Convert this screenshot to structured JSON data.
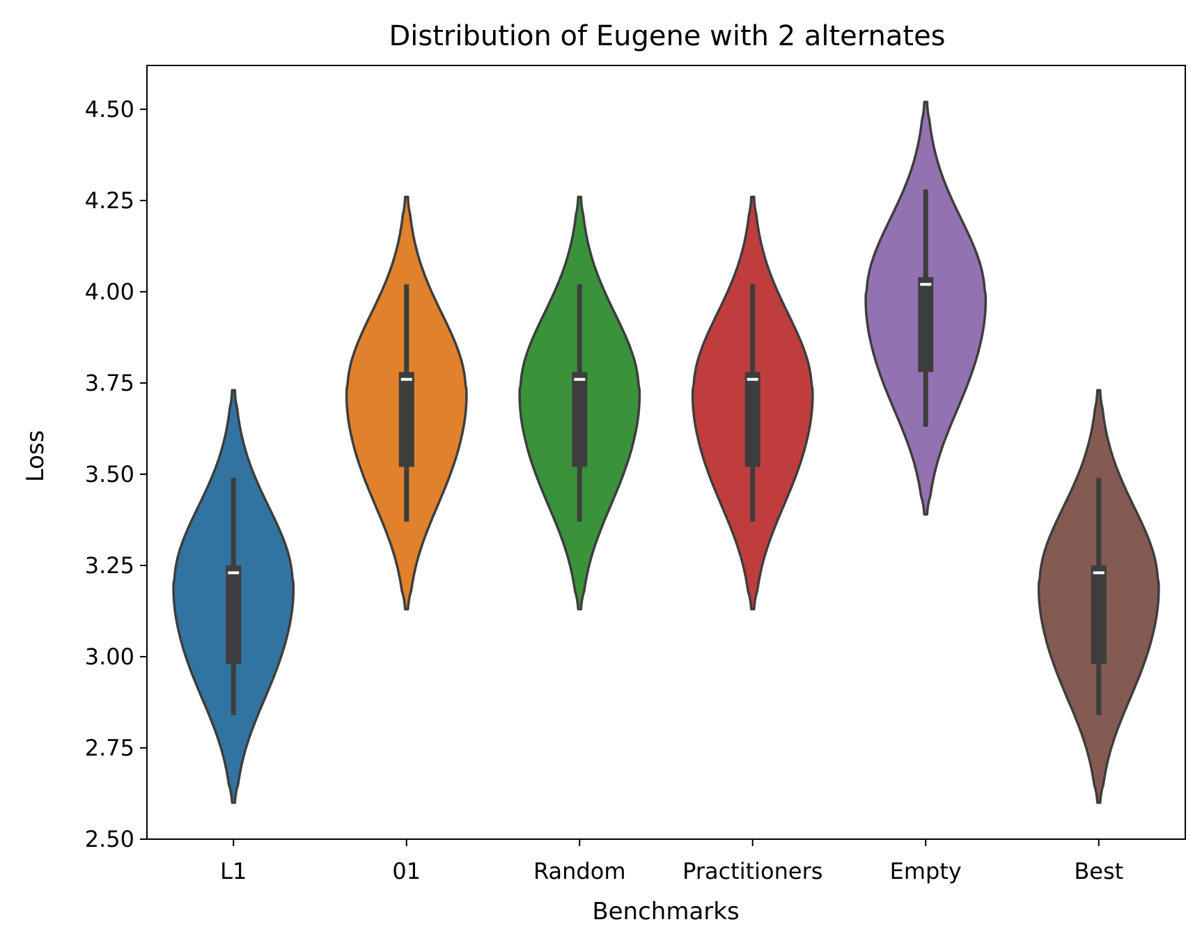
{
  "chart_data": {
    "type": "violin",
    "title": "Distribution of Eugene with 2 alternates",
    "xlabel": "Benchmarks",
    "ylabel": "Loss",
    "ylim": [
      2.5,
      4.62
    ],
    "yticks": [
      "2.50",
      "2.75",
      "3.00",
      "3.25",
      "3.50",
      "3.75",
      "4.00",
      "4.25",
      "4.50"
    ],
    "categories": [
      "L1",
      "01",
      "Random",
      "Practitioners",
      "Empty",
      "Best"
    ],
    "grid": false,
    "legend": "none",
    "series": [
      {
        "category": "L1",
        "color": "#3274a1",
        "min": 2.6,
        "max": 3.73,
        "mode": 3.21,
        "whisker_low": 2.84,
        "q1": 2.98,
        "median": 3.23,
        "q3": 3.25,
        "whisker_high": 3.49
      },
      {
        "category": "01",
        "color": "#e1812c",
        "min": 3.13,
        "max": 4.26,
        "mode": 3.74,
        "whisker_low": 3.37,
        "q1": 3.52,
        "median": 3.76,
        "q3": 3.78,
        "whisker_high": 4.02
      },
      {
        "category": "Random",
        "color": "#3a923a",
        "min": 3.13,
        "max": 4.26,
        "mode": 3.74,
        "whisker_low": 3.37,
        "q1": 3.52,
        "median": 3.76,
        "q3": 3.78,
        "whisker_high": 4.02
      },
      {
        "category": "Practitioners",
        "color": "#c03d3e",
        "min": 3.13,
        "max": 4.26,
        "mode": 3.74,
        "whisker_low": 3.37,
        "q1": 3.52,
        "median": 3.76,
        "q3": 3.78,
        "whisker_high": 4.02
      },
      {
        "category": "Empty",
        "color": "#9372b2",
        "min": 3.39,
        "max": 4.52,
        "mode": 4.0,
        "whisker_low": 3.63,
        "q1": 3.78,
        "median": 4.02,
        "q3": 4.04,
        "whisker_high": 4.28
      },
      {
        "category": "Best",
        "color": "#845b53",
        "min": 2.6,
        "max": 3.73,
        "mode": 3.21,
        "whisker_low": 2.84,
        "q1": 2.98,
        "median": 3.23,
        "q3": 3.25,
        "whisker_high": 3.49
      }
    ]
  }
}
